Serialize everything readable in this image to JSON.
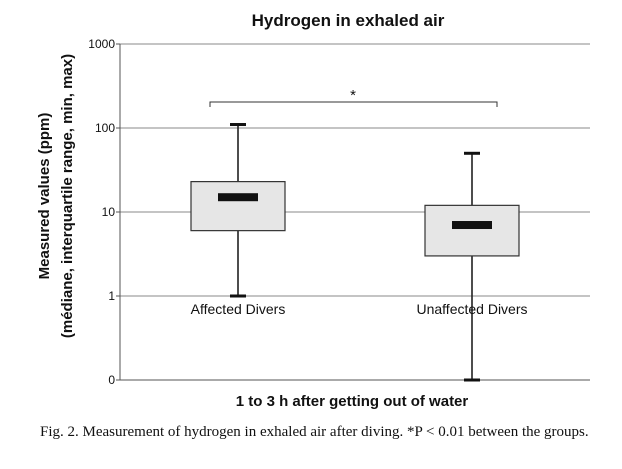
{
  "chart_data": {
    "type": "box",
    "title": "Hydrogen in exhaled air",
    "xlabel": "1 to 3 h after getting out of water",
    "ylabel_line1": "Measured values (ppm)",
    "ylabel_line2": "(médiane, interquartile range, min, max)",
    "yscale": "log",
    "y_ticks": [
      {
        "value": 0,
        "label": "0"
      },
      {
        "value": 1,
        "label": "1"
      },
      {
        "value": 10,
        "label": "10"
      },
      {
        "value": 100,
        "label": "100"
      },
      {
        "value": 1000,
        "label": "1000"
      }
    ],
    "grid": true,
    "series": [
      {
        "name": "Affected Divers",
        "min": 1,
        "q1": 6,
        "median": 15,
        "q3": 23,
        "max": 110
      },
      {
        "name": "Unaffected Divers",
        "min": 0,
        "q1": 3,
        "median": 7,
        "q3": 12,
        "max": 50
      }
    ],
    "annotation": "*"
  },
  "caption": "Fig. 2. Measurement of hydrogen in exhaled air after diving. *P < 0.01 between the groups."
}
